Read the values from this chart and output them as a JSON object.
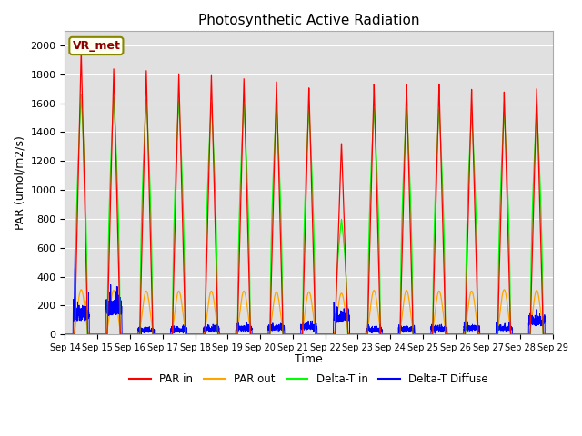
{
  "title": "Photosynthetic Active Radiation",
  "ylabel": "PAR (umol/m2/s)",
  "xlabel": "Time",
  "legend_label": "VR_met",
  "series_labels": [
    "PAR in",
    "PAR out",
    "Delta-T in",
    "Delta-T Diffuse"
  ],
  "series_colors": [
    "red",
    "orange",
    "lime",
    "blue"
  ],
  "x_tick_labels": [
    "Sep 14",
    "Sep 15",
    "Sep 16",
    "Sep 17",
    "Sep 18",
    "Sep 19",
    "Sep 20",
    "Sep 21",
    "Sep 22",
    "Sep 23",
    "Sep 24",
    "Sep 25",
    "Sep 26",
    "Sep 27",
    "Sep 28",
    "Sep 29"
  ],
  "ylim": [
    0,
    2100
  ],
  "yticks": [
    0,
    200,
    400,
    600,
    800,
    1000,
    1200,
    1400,
    1600,
    1800,
    2000
  ],
  "par_in_peaks": [
    1970,
    1840,
    1830,
    1810,
    1800,
    1780,
    1760,
    1720,
    1330,
    1740,
    1740,
    1740,
    1700,
    1680,
    1700
  ],
  "par_out_peaks": [
    310,
    305,
    300,
    300,
    300,
    300,
    295,
    295,
    285,
    305,
    305,
    300,
    300,
    310,
    305
  ],
  "delta_t_in_peaks": [
    1660,
    1640,
    1630,
    1620,
    1610,
    1600,
    1580,
    1560,
    800,
    1570,
    1570,
    1560,
    1540,
    1540,
    1560
  ],
  "delta_t_diff_peaks": [
    330,
    450,
    75,
    80,
    90,
    100,
    110,
    120,
    290,
    75,
    85,
    100,
    105,
    100,
    220
  ],
  "n_days": 15,
  "pts_per_day": 288,
  "plot_bg_color": "#e0e0e0",
  "grid_color": "#ffffff",
  "spine_color": "#aaaaaa"
}
